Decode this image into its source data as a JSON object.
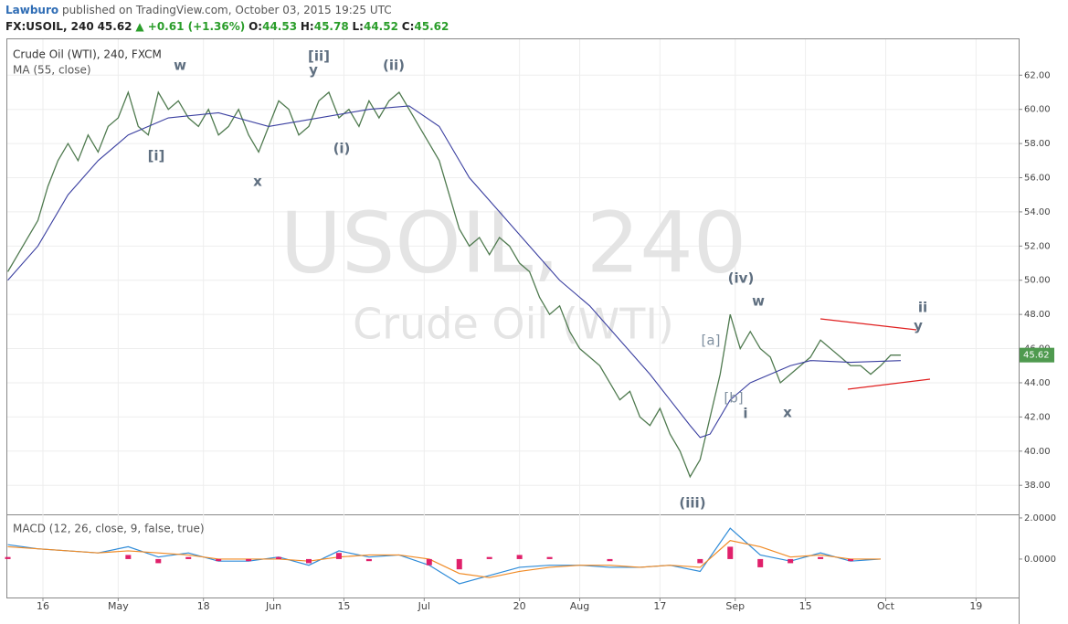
{
  "header": {
    "author": "Lawburo",
    "published": "published on TradingView.com, October 03, 2015 19:25 UTC",
    "symbol": "FX:USOIL, 240",
    "price": "45.62",
    "change": "▲ +0.61 (+1.36%)",
    "o_label": "O:",
    "o": "44.53",
    "h_label": "H:",
    "h": "45.78",
    "l_label": "L:",
    "l": "44.52",
    "c_label": "C:",
    "c": "45.62"
  },
  "chart_data": [
    {
      "type": "line",
      "title": "Crude Oil (WTI), 240, FXCM",
      "indicator": "MA (55, close)",
      "watermark": "USOIL, 240",
      "watermark_sub": "Crude Oil (WTI)",
      "xlim": [
        7.9,
        209.5
      ],
      "xticks": [
        {
          "value": 15,
          "label": "16"
        },
        {
          "value": 30,
          "label": "May"
        },
        {
          "value": 47,
          "label": "18"
        },
        {
          "value": 61,
          "label": "Jun"
        },
        {
          "value": 75,
          "label": "15"
        },
        {
          "value": 91,
          "label": "Jul"
        },
        {
          "value": 110,
          "label": "20"
        },
        {
          "value": 122,
          "label": "Aug"
        },
        {
          "value": 138,
          "label": "17"
        },
        {
          "value": 153,
          "label": "Sep"
        },
        {
          "value": 167,
          "label": "15"
        },
        {
          "value": 183,
          "label": "Oct"
        },
        {
          "value": 201,
          "label": "19"
        }
      ],
      "ylim": [
        36.3,
        64.1
      ],
      "yticks": [
        {
          "value": 38,
          "label": "38.00"
        },
        {
          "value": 40,
          "label": "40.00"
        },
        {
          "value": 42,
          "label": "42.00"
        },
        {
          "value": 44,
          "label": "44.00"
        },
        {
          "value": 46,
          "label": "46.00"
        },
        {
          "value": 48,
          "label": "48.00"
        },
        {
          "value": 50,
          "label": "50.00"
        },
        {
          "value": 52,
          "label": "52.00"
        },
        {
          "value": 54,
          "label": "54.00"
        },
        {
          "value": 56,
          "label": "56.00"
        },
        {
          "value": 58,
          "label": "58.00"
        },
        {
          "value": 60,
          "label": "60.00"
        },
        {
          "value": 62,
          "label": "62.00"
        }
      ],
      "grid": true,
      "last": 45.62,
      "series": [
        {
          "name": "USOIL",
          "color": "#4f7a4f",
          "x": [
            8,
            10,
            12,
            14,
            16,
            18,
            20,
            22,
            24,
            26,
            28,
            30,
            32,
            34,
            36,
            38,
            40,
            42,
            44,
            46,
            48,
            50,
            52,
            54,
            56,
            58,
            60,
            62,
            64,
            66,
            68,
            70,
            72,
            74,
            76,
            78,
            80,
            82,
            84,
            86,
            88,
            90,
            92,
            94,
            96,
            98,
            100,
            102,
            104,
            106,
            108,
            110,
            112,
            114,
            116,
            118,
            120,
            122,
            124,
            126,
            128,
            130,
            132,
            134,
            136,
            138,
            140,
            142,
            144,
            146,
            148,
            150,
            152,
            154,
            156,
            158,
            160,
            162,
            164,
            166,
            168,
            170,
            172,
            174,
            176,
            178,
            180,
            182,
            184,
            186
          ],
          "values": [
            50.5,
            51.5,
            52.5,
            53.5,
            55.5,
            57,
            58,
            57,
            58.5,
            57.5,
            59,
            59.5,
            61,
            59,
            58.5,
            61,
            60,
            60.5,
            59.5,
            59,
            60,
            58.5,
            59,
            60,
            58.5,
            57.5,
            59,
            60.5,
            60,
            58.5,
            59,
            60.5,
            61,
            59.5,
            60,
            59,
            60.5,
            59.5,
            60.5,
            61,
            60,
            59,
            58,
            57,
            55,
            53,
            52,
            52.5,
            51.5,
            52.5,
            52,
            51,
            50.5,
            49,
            48,
            48.5,
            47,
            46,
            45.5,
            45,
            44,
            43,
            43.5,
            42,
            41.5,
            42.5,
            41,
            40,
            38.5,
            39.5,
            42,
            44.5,
            48,
            46,
            47,
            46,
            45.5,
            44,
            44.5,
            45,
            45.5,
            46.5,
            46,
            45.5,
            45,
            45,
            44.5,
            45,
            45.62,
            45.62
          ]
        },
        {
          "name": "MA (55, close)",
          "color": "#3a3fa0",
          "x": [
            8,
            14,
            20,
            26,
            32,
            40,
            50,
            60,
            70,
            80,
            88,
            94,
            100,
            106,
            112,
            118,
            124,
            130,
            136,
            140,
            144,
            146,
            148,
            152,
            156,
            160,
            164,
            168,
            176,
            186
          ],
          "values": [
            50,
            52,
            55,
            57,
            58.5,
            59.5,
            59.8,
            59,
            59.5,
            60,
            60.2,
            59,
            56,
            54,
            52,
            50,
            48.5,
            46.5,
            44.5,
            43,
            41.5,
            40.8,
            41,
            43,
            44,
            44.5,
            45,
            45.3,
            45.2,
            45.3
          ]
        }
      ],
      "annotations": [
        "w",
        "[i]",
        "x",
        "[ii]",
        "y",
        "(i)",
        "(ii)",
        "(iii)",
        "(iv)",
        "w",
        "[a]",
        "[b]",
        "i",
        "x",
        "ii",
        "y"
      ]
    },
    {
      "type": "macd",
      "title": "MACD (12, 26, close, 9, false, true)",
      "xlim": [
        7.9,
        209.5
      ],
      "ylim": [
        -1.87,
        2.13
      ],
      "yticks": [
        {
          "value": 0,
          "label": "0.0000"
        },
        {
          "value": 2,
          "label": "2.0000"
        }
      ],
      "x": [
        8,
        14,
        20,
        26,
        32,
        38,
        44,
        50,
        56,
        62,
        68,
        74,
        80,
        86,
        92,
        98,
        104,
        110,
        116,
        122,
        128,
        134,
        140,
        146,
        152,
        158,
        164,
        170,
        176,
        182
      ],
      "series": [
        {
          "name": "MACD",
          "color": "#2e8bd8",
          "values": [
            0.7,
            0.5,
            0.4,
            0.3,
            0.6,
            0.1,
            0.3,
            -0.1,
            -0.1,
            0.1,
            -0.3,
            0.4,
            0.1,
            0.2,
            -0.3,
            -1.2,
            -0.8,
            -0.4,
            -0.3,
            -0.3,
            -0.4,
            -0.4,
            -0.3,
            -0.6,
            1.5,
            0.2,
            -0.1,
            0.3,
            -0.1,
            0
          ]
        },
        {
          "name": "Signal",
          "color": "#f08a24",
          "values": [
            0.6,
            0.5,
            0.4,
            0.3,
            0.4,
            0.3,
            0.2,
            0,
            0,
            0,
            -0.1,
            0.1,
            0.2,
            0.2,
            0,
            -0.7,
            -0.9,
            -0.6,
            -0.4,
            -0.3,
            -0.3,
            -0.4,
            -0.3,
            -0.4,
            0.9,
            0.6,
            0.1,
            0.2,
            0,
            0
          ]
        },
        {
          "name": "Histogram",
          "color": "#e0206a",
          "values": [
            0.1,
            0,
            0,
            0,
            0.2,
            -0.2,
            0.1,
            -0.1,
            -0.1,
            0.1,
            -0.2,
            0.3,
            -0.1,
            0,
            -0.3,
            -0.5,
            0.1,
            0.2,
            0.1,
            0,
            -0.1,
            0,
            0,
            -0.2,
            0.6,
            -0.4,
            -0.2,
            0.1,
            -0.1,
            0
          ]
        }
      ]
    }
  ]
}
